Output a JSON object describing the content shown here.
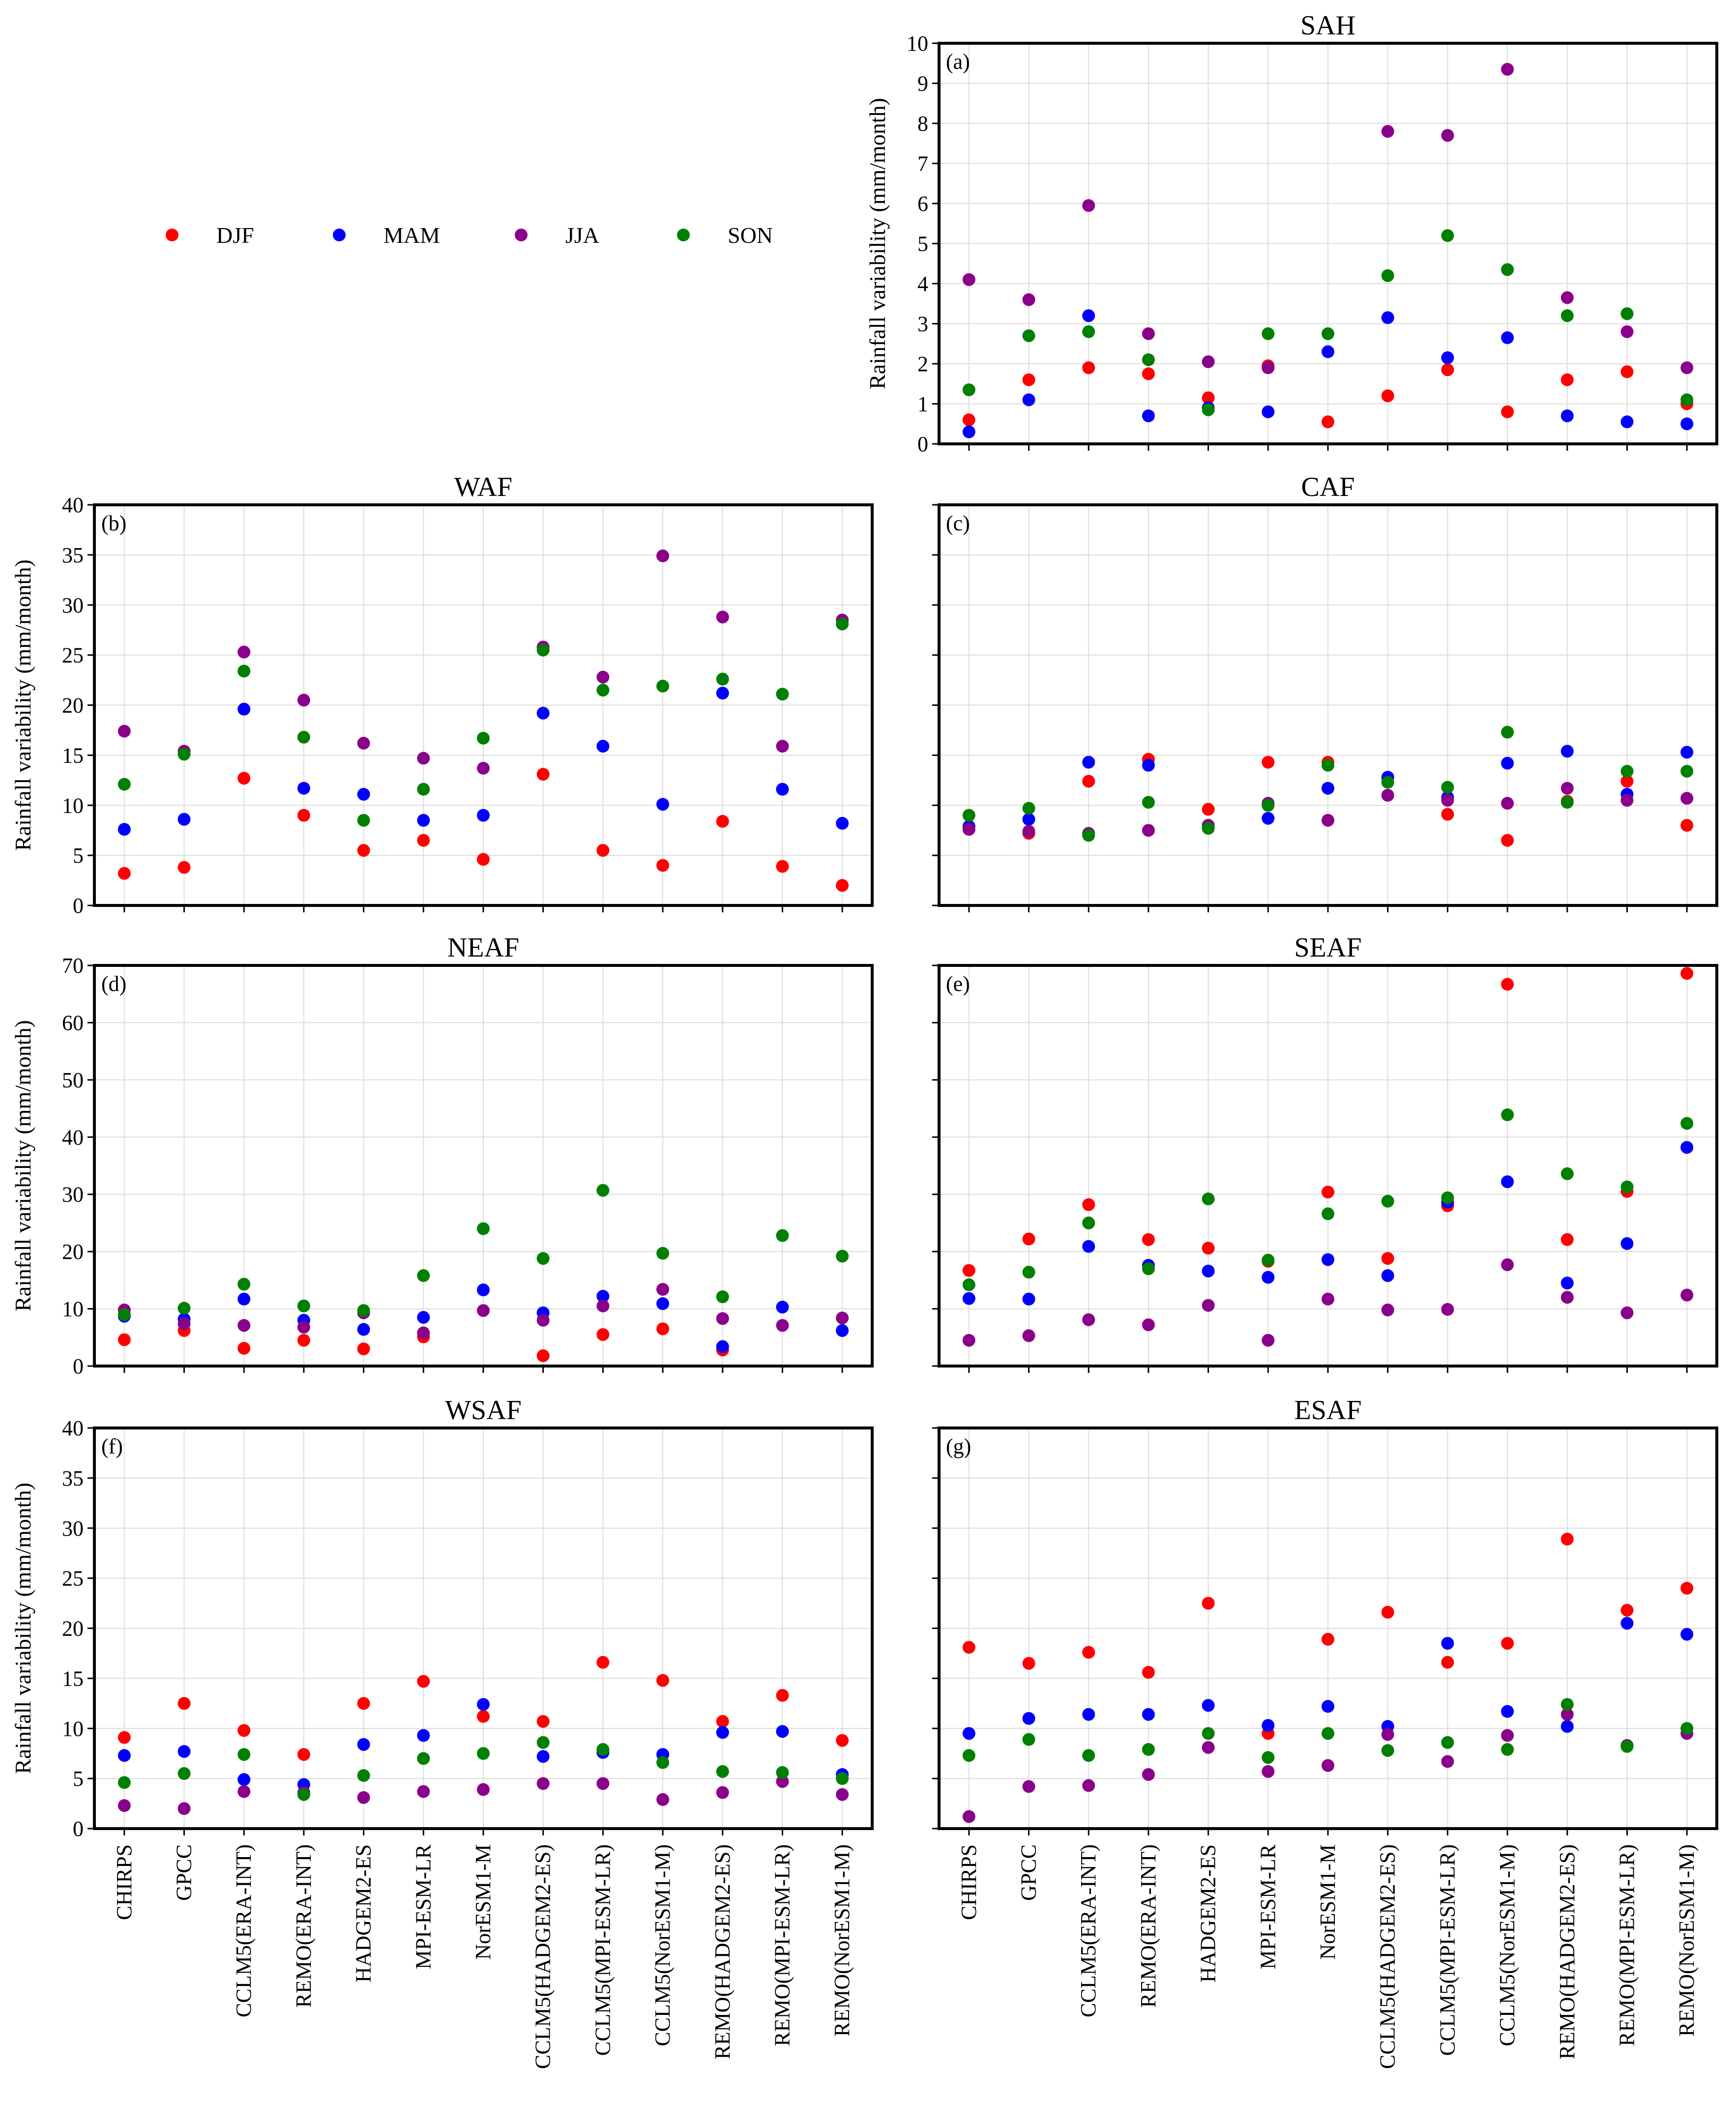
{
  "legend": [
    {
      "name": "DJF",
      "color": "#ff0000"
    },
    {
      "name": "MAM",
      "color": "#0000ff"
    },
    {
      "name": "JJA",
      "color": "#8b008b"
    },
    {
      "name": "SON",
      "color": "#008000"
    }
  ],
  "chart_data": [
    {
      "type": "scatter",
      "label": "(a)",
      "title": "SAH",
      "ylabel": "Rainfall variability (mm/month)",
      "ylim": [
        0,
        10
      ],
      "yticks": [
        0,
        1,
        2,
        3,
        4,
        5,
        6,
        7,
        8,
        9,
        10
      ],
      "show_yticks": true,
      "show_xticks": false,
      "categories": [
        "CHIRPS",
        "GPCC",
        "CCLM5(ERA-INT)",
        "REMO(ERA-INT)",
        "HADGEM2-ES",
        "MPI-ESM-LR",
        "NorESM1-M",
        "CCLM5(HADGEM2-ES)",
        "CCLM5(MPI-ESM-LR)",
        "CCLM5(NorESM1-M)",
        "REMO(HADGEM2-ES)",
        "REMO(MPI-ESM-LR)",
        "REMO(NorESM1-M)"
      ],
      "series": [
        {
          "name": "DJF",
          "values": [
            0.6,
            1.6,
            1.9,
            1.75,
            1.15,
            1.95,
            0.55,
            1.2,
            1.85,
            0.8,
            1.6,
            1.8,
            1.0
          ]
        },
        {
          "name": "MAM",
          "values": [
            0.3,
            1.1,
            3.2,
            0.7,
            0.9,
            0.8,
            2.3,
            3.15,
            2.15,
            2.65,
            0.7,
            0.55,
            0.5
          ]
        },
        {
          "name": "JJA",
          "values": [
            4.1,
            3.6,
            5.95,
            2.75,
            2.05,
            1.9,
            null,
            7.8,
            7.7,
            9.35,
            3.65,
            2.8,
            1.9
          ]
        },
        {
          "name": "SON",
          "values": [
            1.35,
            2.7,
            2.8,
            2.1,
            0.85,
            2.75,
            2.75,
            4.2,
            5.2,
            4.35,
            3.2,
            3.25,
            1.1
          ]
        }
      ]
    },
    {
      "type": "scatter",
      "label": "(b)",
      "title": "WAF",
      "ylabel": "Rainfall variability (mm/month)",
      "ylim": [
        0,
        40
      ],
      "yticks": [
        0,
        5,
        10,
        15,
        20,
        25,
        30,
        35,
        40
      ],
      "show_yticks": true,
      "show_xticks": false,
      "categories": [
        "CHIRPS",
        "GPCC",
        "CCLM5(ERA-INT)",
        "REMO(ERA-INT)",
        "HADGEM2-ES",
        "MPI-ESM-LR",
        "NorESM1-M",
        "CCLM5(HADGEM2-ES)",
        "CCLM5(MPI-ESM-LR)",
        "CCLM5(NorESM1-M)",
        "REMO(HADGEM2-ES)",
        "REMO(MPI-ESM-LR)",
        "REMO(NorESM1-M)"
      ],
      "series": [
        {
          "name": "DJF",
          "values": [
            3.2,
            3.8,
            12.7,
            9.0,
            5.5,
            6.5,
            4.6,
            13.1,
            5.5,
            4.0,
            8.4,
            3.9,
            2.0
          ]
        },
        {
          "name": "MAM",
          "values": [
            7.6,
            8.6,
            19.6,
            11.7,
            11.1,
            8.5,
            9.0,
            19.2,
            15.9,
            10.1,
            21.2,
            11.6,
            8.2
          ]
        },
        {
          "name": "JJA",
          "values": [
            17.4,
            15.4,
            25.3,
            20.5,
            16.2,
            14.7,
            13.7,
            25.8,
            22.8,
            34.9,
            28.8,
            15.9,
            28.5
          ]
        },
        {
          "name": "SON",
          "values": [
            12.1,
            15.1,
            23.4,
            16.8,
            8.5,
            11.6,
            16.7,
            25.5,
            21.5,
            21.9,
            22.6,
            21.1,
            28.1
          ]
        }
      ]
    },
    {
      "type": "scatter",
      "label": "(c)",
      "title": "CAF",
      "ylabel": "",
      "ylim": [
        0,
        40
      ],
      "yticks": [
        0,
        5,
        10,
        15,
        20,
        25,
        30,
        35,
        40
      ],
      "show_yticks": false,
      "show_xticks": false,
      "categories": [
        "CHIRPS",
        "GPCC",
        "CCLM5(ERA-INT)",
        "REMO(ERA-INT)",
        "HADGEM2-ES",
        "MPI-ESM-LR",
        "NorESM1-M",
        "CCLM5(HADGEM2-ES)",
        "CCLM5(MPI-ESM-LR)",
        "CCLM5(NorESM1-M)",
        "REMO(HADGEM2-ES)",
        "REMO(MPI-ESM-LR)",
        "REMO(NorESM1-M)"
      ],
      "series": [
        {
          "name": "DJF",
          "values": [
            7.6,
            7.2,
            12.4,
            14.6,
            9.6,
            14.3,
            14.3,
            12.8,
            9.1,
            6.5,
            10.4,
            12.4,
            8.0
          ]
        },
        {
          "name": "MAM",
          "values": [
            7.9,
            8.6,
            14.3,
            14.0,
            8.0,
            8.7,
            11.7,
            12.8,
            10.8,
            14.2,
            15.4,
            11.1,
            15.3
          ]
        },
        {
          "name": "JJA",
          "values": [
            7.6,
            7.4,
            7.2,
            7.5,
            8.0,
            10.2,
            8.5,
            11.0,
            10.5,
            10.2,
            11.7,
            10.5,
            10.7
          ]
        },
        {
          "name": "SON",
          "values": [
            9.0,
            9.7,
            7.0,
            10.3,
            7.7,
            10.0,
            14.0,
            12.3,
            11.8,
            17.3,
            10.3,
            13.4,
            13.4
          ]
        }
      ]
    },
    {
      "type": "scatter",
      "label": "(d)",
      "title": "NEAF",
      "ylabel": "Rainfall variability (mm/month)",
      "ylim": [
        0,
        70
      ],
      "yticks": [
        0,
        10,
        20,
        30,
        40,
        50,
        60,
        70
      ],
      "show_yticks": true,
      "show_xticks": false,
      "categories": [
        "CHIRPS",
        "GPCC",
        "CCLM5(ERA-INT)",
        "REMO(ERA-INT)",
        "HADGEM2-ES",
        "MPI-ESM-LR",
        "NorESM1-M",
        "CCLM5(HADGEM2-ES)",
        "CCLM5(MPI-ESM-LR)",
        "CCLM5(NorESM1-M)",
        "REMO(HADGEM2-ES)",
        "REMO(MPI-ESM-LR)",
        "REMO(NorESM1-M)"
      ],
      "series": [
        {
          "name": "DJF",
          "values": [
            4.6,
            6.2,
            3.1,
            4.5,
            3.0,
            5.1,
            null,
            1.8,
            5.5,
            6.5,
            2.8,
            null,
            null
          ]
        },
        {
          "name": "MAM",
          "values": [
            8.7,
            8.2,
            11.7,
            8.0,
            6.4,
            8.5,
            13.3,
            9.3,
            12.2,
            10.9,
            3.4,
            10.3,
            6.2
          ]
        },
        {
          "name": "JJA",
          "values": [
            9.8,
            7.4,
            7.1,
            6.8,
            9.3,
            5.8,
            9.7,
            8.0,
            10.5,
            13.4,
            8.3,
            7.1,
            8.4
          ]
        },
        {
          "name": "SON",
          "values": [
            9.0,
            10.1,
            14.3,
            10.5,
            9.7,
            15.8,
            24.0,
            18.8,
            30.7,
            19.7,
            12.1,
            22.8,
            19.2
          ]
        }
      ]
    },
    {
      "type": "scatter",
      "label": "(e)",
      "title": "SEAF",
      "ylabel": "",
      "ylim": [
        0,
        70
      ],
      "yticks": [
        0,
        10,
        20,
        30,
        40,
        50,
        60,
        70
      ],
      "show_yticks": false,
      "show_xticks": false,
      "categories": [
        "CHIRPS",
        "GPCC",
        "CCLM5(ERA-INT)",
        "REMO(ERA-INT)",
        "HADGEM2-ES",
        "MPI-ESM-LR",
        "NorESM1-M",
        "CCLM5(HADGEM2-ES)",
        "CCLM5(MPI-ESM-LR)",
        "CCLM5(NorESM1-M)",
        "REMO(HADGEM2-ES)",
        "REMO(MPI-ESM-LR)",
        "REMO(NorESM1-M)"
      ],
      "series": [
        {
          "name": "DJF",
          "values": [
            16.7,
            22.2,
            28.2,
            22.1,
            20.6,
            18.3,
            30.4,
            18.8,
            28.0,
            66.7,
            22.1,
            30.5,
            68.6
          ]
        },
        {
          "name": "MAM",
          "values": [
            11.8,
            11.7,
            20.9,
            17.6,
            16.6,
            15.5,
            18.6,
            15.8,
            28.6,
            32.2,
            14.5,
            21.4,
            38.2
          ]
        },
        {
          "name": "JJA",
          "values": [
            4.5,
            5.3,
            8.1,
            7.2,
            10.6,
            4.5,
            11.7,
            9.8,
            9.9,
            17.7,
            12.0,
            9.3,
            12.4
          ]
        },
        {
          "name": "SON",
          "values": [
            14.2,
            16.4,
            25.0,
            17.0,
            29.2,
            18.5,
            26.6,
            28.8,
            29.4,
            43.9,
            33.6,
            31.3,
            42.4
          ]
        }
      ]
    },
    {
      "type": "scatter",
      "label": "(f)",
      "title": "WSAF",
      "ylabel": "Rainfall variability (mm/month)",
      "ylim": [
        0,
        40
      ],
      "yticks": [
        0,
        5,
        10,
        15,
        20,
        25,
        30,
        35,
        40
      ],
      "show_yticks": true,
      "show_xticks": true,
      "categories": [
        "CHIRPS",
        "GPCC",
        "CCLM5(ERA-INT)",
        "REMO(ERA-INT)",
        "HADGEM2-ES",
        "MPI-ESM-LR",
        "NorESM1-M",
        "CCLM5(HADGEM2-ES)",
        "CCLM5(MPI-ESM-LR)",
        "CCLM5(NorESM1-M)",
        "REMO(HADGEM2-ES)",
        "REMO(MPI-ESM-LR)",
        "REMO(NorESM1-M)"
      ],
      "series": [
        {
          "name": "DJF",
          "values": [
            9.1,
            12.5,
            9.8,
            7.4,
            12.5,
            14.7,
            11.2,
            10.7,
            16.6,
            14.8,
            10.7,
            13.3,
            8.8
          ]
        },
        {
          "name": "MAM",
          "values": [
            7.3,
            7.7,
            4.9,
            4.4,
            8.4,
            9.3,
            12.4,
            7.2,
            7.6,
            7.4,
            9.6,
            9.7,
            5.4
          ]
        },
        {
          "name": "JJA",
          "values": [
            2.3,
            2.0,
            3.7,
            3.6,
            3.1,
            3.7,
            3.9,
            4.5,
            4.5,
            2.9,
            3.6,
            4.7,
            3.4
          ]
        },
        {
          "name": "SON",
          "values": [
            4.6,
            5.5,
            7.4,
            3.4,
            5.3,
            7.0,
            7.5,
            8.6,
            7.9,
            6.6,
            5.7,
            5.6,
            5.0
          ]
        }
      ]
    },
    {
      "type": "scatter",
      "label": "(g)",
      "title": "ESAF",
      "ylabel": "",
      "ylim": [
        0,
        40
      ],
      "yticks": [
        0,
        5,
        10,
        15,
        20,
        25,
        30,
        35,
        40
      ],
      "show_yticks": false,
      "show_xticks": true,
      "categories": [
        "CHIRPS",
        "GPCC",
        "CCLM5(ERA-INT)",
        "REMO(ERA-INT)",
        "HADGEM2-ES",
        "MPI-ESM-LR",
        "NorESM1-M",
        "CCLM5(HADGEM2-ES)",
        "CCLM5(MPI-ESM-LR)",
        "CCLM5(NorESM1-M)",
        "REMO(HADGEM2-ES)",
        "REMO(MPI-ESM-LR)",
        "REMO(NorESM1-M)"
      ],
      "series": [
        {
          "name": "DJF",
          "values": [
            18.1,
            16.5,
            17.6,
            15.6,
            22.5,
            9.5,
            18.9,
            21.6,
            16.6,
            18.5,
            28.9,
            21.8,
            24.0
          ]
        },
        {
          "name": "MAM",
          "values": [
            9.5,
            11.0,
            11.4,
            11.4,
            12.3,
            10.3,
            12.2,
            10.2,
            18.5,
            11.7,
            10.2,
            20.5,
            19.4
          ]
        },
        {
          "name": "JJA",
          "values": [
            1.2,
            4.2,
            4.3,
            5.4,
            8.1,
            5.7,
            6.3,
            9.4,
            6.7,
            9.3,
            11.4,
            8.3,
            9.5
          ]
        },
        {
          "name": "SON",
          "values": [
            7.3,
            8.9,
            7.3,
            7.9,
            9.5,
            7.1,
            9.5,
            7.8,
            8.6,
            7.9,
            12.4,
            8.2,
            10.0
          ]
        }
      ]
    }
  ]
}
